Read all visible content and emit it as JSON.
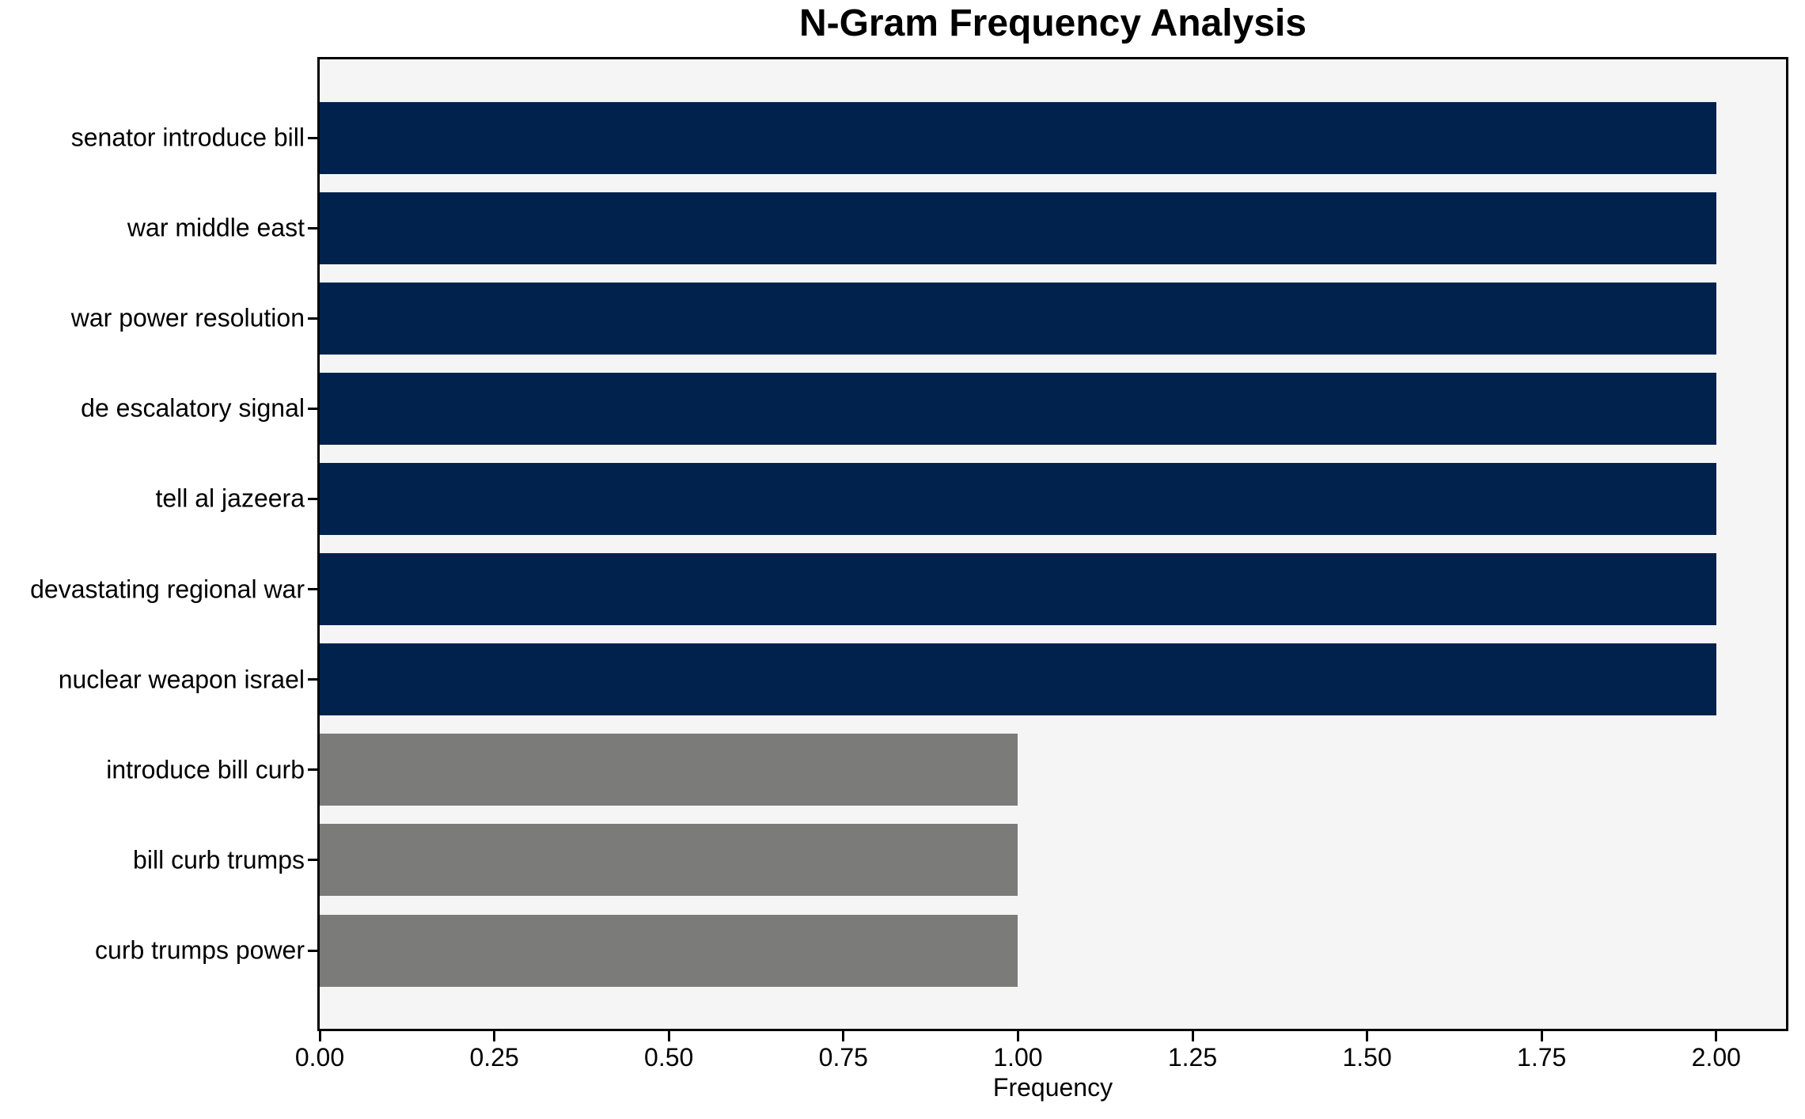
{
  "chart_data": {
    "type": "bar",
    "orientation": "horizontal",
    "title": "N-Gram Frequency Analysis",
    "xlabel": "Frequency",
    "ylabel": "",
    "categories": [
      "senator introduce bill",
      "war middle east",
      "war power resolution",
      "de escalatory signal",
      "tell al jazeera",
      "devastating regional war",
      "nuclear weapon israel",
      "introduce bill curb",
      "bill curb trumps",
      "curb trumps power"
    ],
    "values": [
      2,
      2,
      2,
      2,
      2,
      2,
      2,
      1,
      1,
      1
    ],
    "bar_colors": [
      "#02224e",
      "#02224e",
      "#02224e",
      "#02224e",
      "#02224e",
      "#02224e",
      "#02224e",
      "#7b7b79",
      "#7b7b79",
      "#7b7b79"
    ],
    "xlim": [
      0,
      2.1
    ],
    "xticks": [
      0,
      0.25,
      0.5,
      0.75,
      1.0,
      1.25,
      1.5,
      1.75,
      2.0
    ],
    "xtick_labels": [
      "0.00",
      "0.25",
      "0.50",
      "0.75",
      "1.00",
      "1.25",
      "1.50",
      "1.75",
      "2.00"
    ],
    "grid": false,
    "legend": false,
    "plot_background": "#f5f5f5",
    "figure_background": "#ffffff",
    "navy_color": "#02224e",
    "gray_color": "#7b7b79"
  }
}
